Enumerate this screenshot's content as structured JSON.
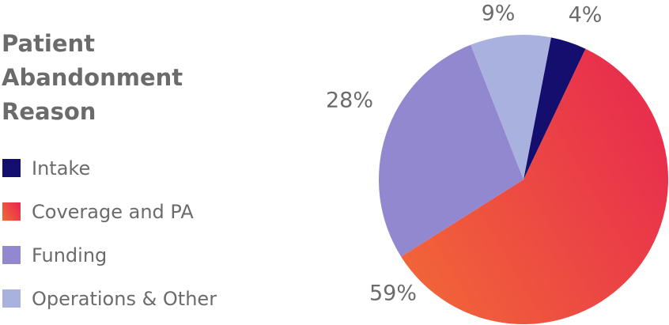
{
  "chart_data": {
    "type": "pie",
    "title": "Patient Abandonment Reason",
    "categories": [
      "Intake",
      "Coverage and PA",
      "Funding",
      "Operations & Other"
    ],
    "values": [
      4,
      59,
      28,
      9
    ],
    "value_labels": [
      "4%",
      "59%",
      "28%",
      "9%"
    ],
    "colors": [
      "#140e6e",
      "#ee4a40",
      "#9288cf",
      "#a9b1de"
    ],
    "legend": "left"
  }
}
